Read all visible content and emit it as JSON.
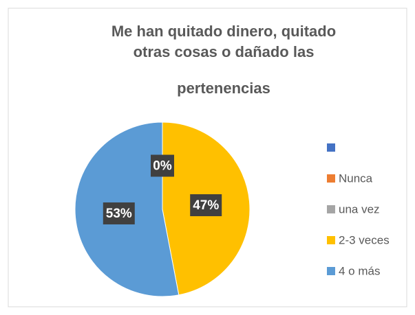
{
  "chart_data": {
    "type": "pie",
    "title": [
      "Me han quitado dinero, quitado",
      "otras cosas o dañado las",
      "pertenencias"
    ],
    "categories": [
      null,
      "Nunca",
      "una vez",
      "2-3 veces",
      "4 o más"
    ],
    "values": [
      0,
      0,
      0,
      47,
      53
    ],
    "value_labels": [
      "0%",
      "0%",
      "0%",
      "47%",
      "53%"
    ],
    "colors": [
      "#4472c4",
      "#ed7d31",
      "#a5a5a5",
      "#ffc000",
      "#5b9bd5"
    ],
    "legend": "right"
  }
}
